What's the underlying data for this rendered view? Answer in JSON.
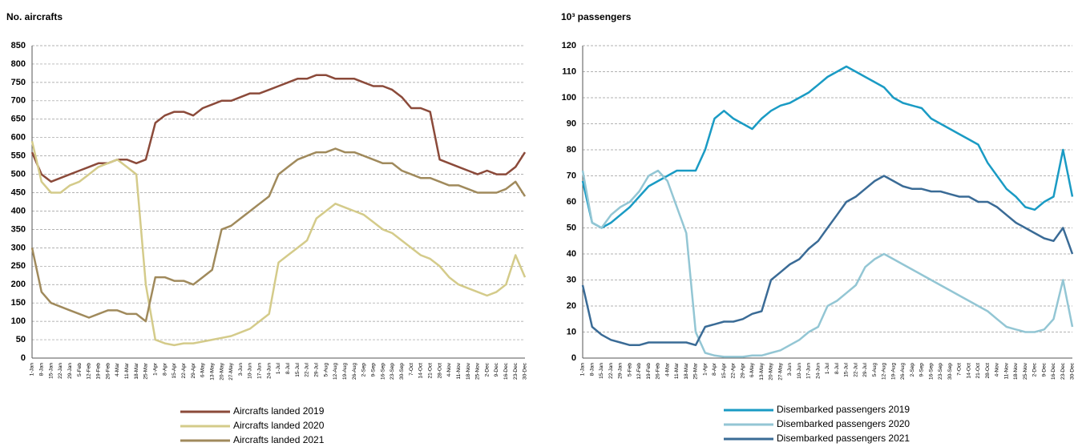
{
  "chart_data": [
    {
      "type": "line",
      "title": "No. aircrafts",
      "categories": [
        "1-Jan",
        "8-Jan",
        "15-Jan",
        "22-Jan",
        "29-Jan",
        "5-Feb",
        "12-Feb",
        "19-Feb",
        "26-Feb",
        "4-Mar",
        "11-Mar",
        "18-Mar",
        "25-Mar",
        "1-Apr",
        "8-Apr",
        "15-Apr",
        "22-Apr",
        "29-Apr",
        "6-May",
        "13-May",
        "20-May",
        "27-May",
        "3-Jun",
        "10-Jun",
        "17-Jun",
        "24-Jun",
        "1-Jul",
        "8-Jul",
        "15-Jul",
        "22-Jul",
        "29-Jul",
        "5-Aug",
        "12-Aug",
        "19-Aug",
        "26-Aug",
        "2-Sep",
        "9-Sep",
        "16-Sep",
        "23-Sep",
        "30-Sep",
        "7-Oct",
        "14-Oct",
        "21-Oct",
        "28-Oct",
        "4-Nov",
        "11-Nov",
        "18-Nov",
        "25-Nov",
        "2-Dec",
        "9-Dec",
        "16-Dec",
        "23-Dec",
        "30-Dec"
      ],
      "series": [
        {
          "name": "Aircrafts landed 2019",
          "color": "#8b4a3a",
          "values": [
            560,
            500,
            480,
            490,
            500,
            510,
            520,
            530,
            530,
            540,
            540,
            530,
            540,
            640,
            660,
            670,
            670,
            660,
            680,
            690,
            700,
            700,
            710,
            720,
            720,
            730,
            740,
            750,
            760,
            760,
            770,
            770,
            760,
            760,
            760,
            750,
            740,
            740,
            730,
            710,
            680,
            680,
            670,
            540,
            530,
            520,
            510,
            500,
            510,
            500,
            500,
            520,
            560
          ]
        },
        {
          "name": "Aircrafts landed 2020",
          "color": "#d4cb8a",
          "values": [
            590,
            480,
            450,
            450,
            470,
            480,
            500,
            520,
            530,
            540,
            520,
            500,
            200,
            50,
            40,
            35,
            40,
            40,
            45,
            50,
            55,
            60,
            70,
            80,
            100,
            120,
            260,
            280,
            300,
            320,
            380,
            400,
            420,
            410,
            400,
            390,
            370,
            350,
            340,
            320,
            300,
            280,
            270,
            250,
            220,
            200,
            190,
            180,
            170,
            180,
            200,
            280,
            220
          ]
        },
        {
          "name": "Aircrafts landed 2021",
          "color": "#a08a5c",
          "values": [
            300,
            180,
            150,
            140,
            130,
            120,
            110,
            120,
            130,
            130,
            120,
            120,
            100,
            220,
            220,
            210,
            210,
            200,
            220,
            240,
            350,
            360,
            380,
            400,
            420,
            440,
            500,
            520,
            540,
            550,
            560,
            560,
            570,
            560,
            560,
            550,
            540,
            530,
            530,
            510,
            500,
            490,
            490,
            480,
            470,
            470,
            460,
            450,
            450,
            450,
            460,
            480,
            440
          ]
        }
      ],
      "ylim": [
        0,
        850
      ],
      "yticks": [
        0,
        50,
        100,
        150,
        200,
        250,
        300,
        350,
        400,
        450,
        500,
        550,
        600,
        650,
        700,
        750,
        800,
        850
      ],
      "grid": true
    },
    {
      "type": "line",
      "title": "10³ passengers",
      "categories": [
        "1-Jan",
        "8-Jan",
        "15-Jan",
        "22-Jan",
        "29-Jan",
        "5-Feb",
        "12-Feb",
        "19-Feb",
        "26-Feb",
        "4-Mar",
        "11-Mar",
        "18-Mar",
        "25-Mar",
        "1-Apr",
        "8-Apr",
        "15-Apr",
        "22-Apr",
        "29-Apr",
        "6-May",
        "13-May",
        "20-May",
        "27-May",
        "3-Jun",
        "10-Jun",
        "17-Jun",
        "24-Jun",
        "1-Jul",
        "8-Jul",
        "15-Jul",
        "22-Jul",
        "29-Jul",
        "5-Aug",
        "12-Aug",
        "19-Aug",
        "26-Aug",
        "2-Sep",
        "9-Sep",
        "16-Sep",
        "23-Sep",
        "30-Sep",
        "7-Oct",
        "14-Oct",
        "21-Oct",
        "28-Oct",
        "4-Nov",
        "11-Nov",
        "18-Nov",
        "25-Nov",
        "2-Dec",
        "9-Dec",
        "16-Dec",
        "23-Dec",
        "30-Dec"
      ],
      "series": [
        {
          "name": "Disembarked passengers 2019",
          "color": "#1a9bc4",
          "values": [
            68,
            52,
            50,
            52,
            55,
            58,
            62,
            66,
            68,
            70,
            72,
            72,
            72,
            80,
            92,
            95,
            92,
            90,
            88,
            92,
            95,
            97,
            98,
            100,
            102,
            105,
            108,
            110,
            112,
            110,
            108,
            106,
            104,
            100,
            98,
            97,
            96,
            92,
            90,
            88,
            86,
            84,
            82,
            75,
            70,
            65,
            62,
            58,
            57,
            60,
            62,
            80,
            62
          ]
        },
        {
          "name": "Disembarked passengers 2020",
          "color": "#93c6d4",
          "values": [
            72,
            52,
            50,
            55,
            58,
            60,
            64,
            70,
            72,
            68,
            58,
            48,
            10,
            2,
            1,
            0.5,
            0.5,
            0.5,
            1,
            1,
            2,
            3,
            5,
            7,
            10,
            12,
            20,
            22,
            25,
            28,
            35,
            38,
            40,
            38,
            36,
            34,
            32,
            30,
            28,
            26,
            24,
            22,
            20,
            18,
            15,
            12,
            11,
            10,
            10,
            11,
            15,
            30,
            12
          ]
        },
        {
          "name": "Disembarked passengers 2021",
          "color": "#3a6b96",
          "values": [
            28,
            12,
            9,
            7,
            6,
            5,
            5,
            6,
            6,
            6,
            6,
            6,
            5,
            12,
            13,
            14,
            14,
            15,
            17,
            18,
            30,
            33,
            36,
            38,
            42,
            45,
            50,
            55,
            60,
            62,
            65,
            68,
            70,
            68,
            66,
            65,
            65,
            64,
            64,
            63,
            62,
            62,
            60,
            60,
            58,
            55,
            52,
            50,
            48,
            46,
            45,
            50,
            40
          ]
        }
      ],
      "ylim": [
        0,
        120
      ],
      "yticks": [
        0,
        10,
        20,
        30,
        40,
        50,
        60,
        70,
        80,
        90,
        100,
        110,
        120
      ],
      "grid": true
    }
  ]
}
